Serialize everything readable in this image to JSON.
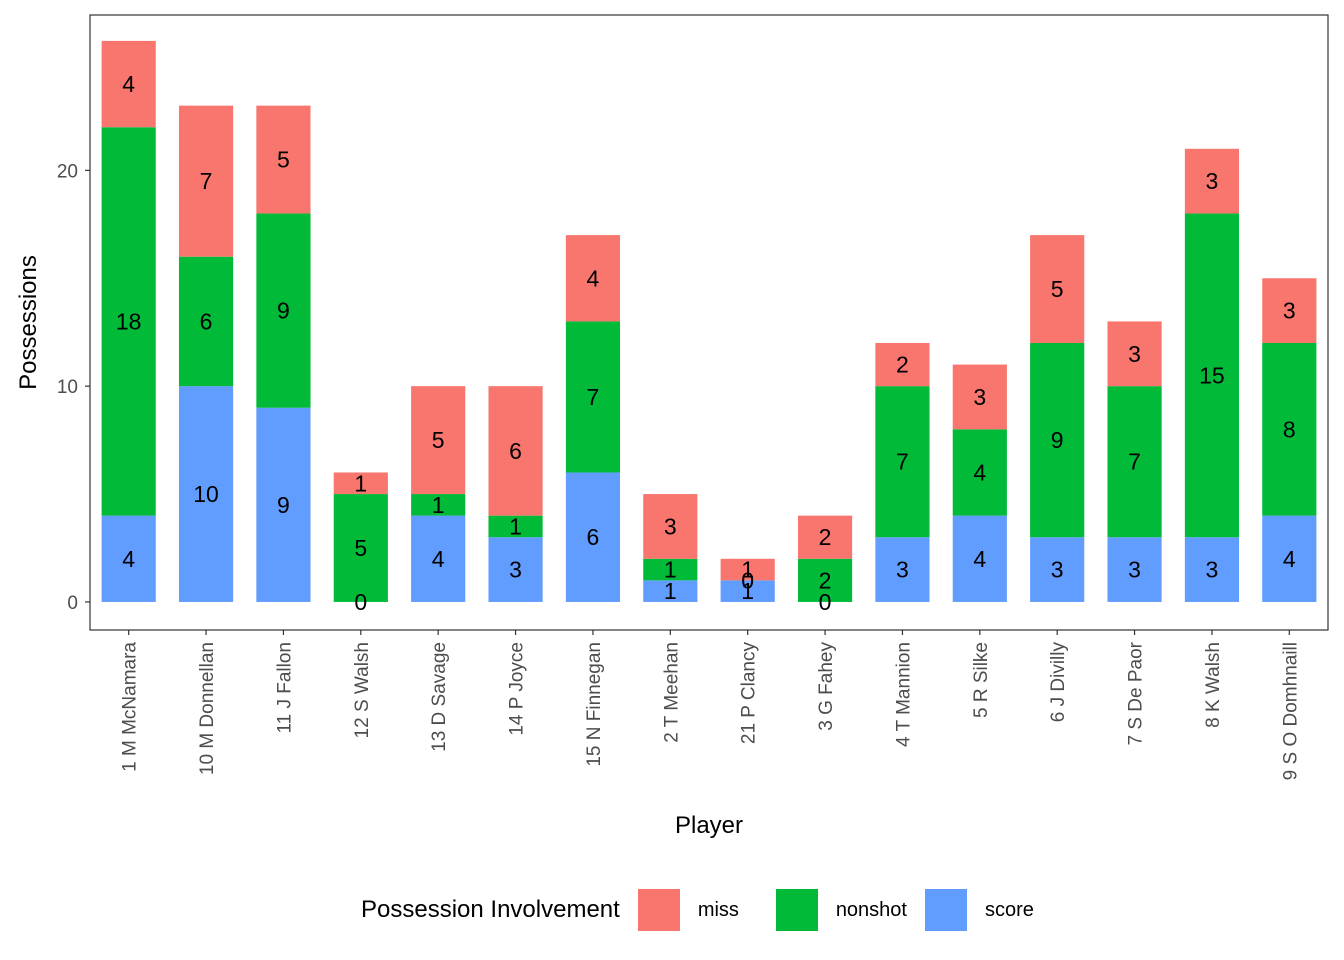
{
  "chart_data": {
    "type": "bar",
    "stacked": true,
    "xlabel": "Player",
    "ylabel": "Possessions",
    "ylim": [
      -1.3,
      27.2
    ],
    "yticks": [
      0,
      10,
      20
    ],
    "categories": [
      "1 M McNamara",
      "10 M Donnellan",
      "11 J Fallon",
      "12 S Walsh",
      "13 D Savage",
      "14 P Joyce",
      "15 N Finnegan",
      "2 T Meehan",
      "21 P Clancy",
      "3 G Fahey",
      "4 T Mannion",
      "5 R Silke",
      "6 J Divilly",
      "7 S De Paor",
      "8 K Walsh",
      "9 S O Domhnaill"
    ],
    "series": [
      {
        "name": "score",
        "color": "#619CFF",
        "values": [
          4,
          10,
          9,
          0,
          4,
          3,
          6,
          1,
          1,
          0,
          3,
          4,
          3,
          3,
          3,
          4
        ]
      },
      {
        "name": "nonshot",
        "color": "#00BA38",
        "values": [
          18,
          6,
          9,
          5,
          1,
          1,
          7,
          1,
          0,
          2,
          7,
          4,
          9,
          7,
          15,
          8
        ]
      },
      {
        "name": "miss",
        "color": "#F8766D",
        "values": [
          4,
          7,
          5,
          1,
          5,
          6,
          4,
          3,
          1,
          2,
          2,
          3,
          5,
          3,
          3,
          3
        ]
      }
    ],
    "legend": {
      "title": "Possession Involvement",
      "position": "bottom",
      "items": [
        {
          "label": "miss",
          "color": "#F8766D"
        },
        {
          "label": "nonshot",
          "color": "#00BA38"
        },
        {
          "label": "score",
          "color": "#619CFF"
        }
      ]
    },
    "grid": false
  }
}
